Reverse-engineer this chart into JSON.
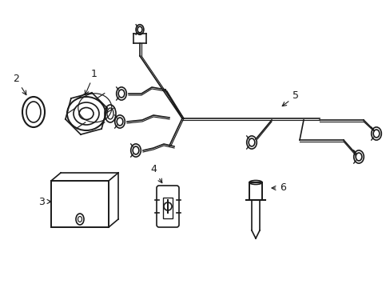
{
  "background_color": "#ffffff",
  "line_color": "#1a1a1a",
  "line_width": 1.2,
  "label_fontsize": 9,
  "figsize": [
    4.89,
    3.6
  ],
  "dpi": 100,
  "xlim": [
    0,
    489
  ],
  "ylim": [
    0,
    360
  ]
}
